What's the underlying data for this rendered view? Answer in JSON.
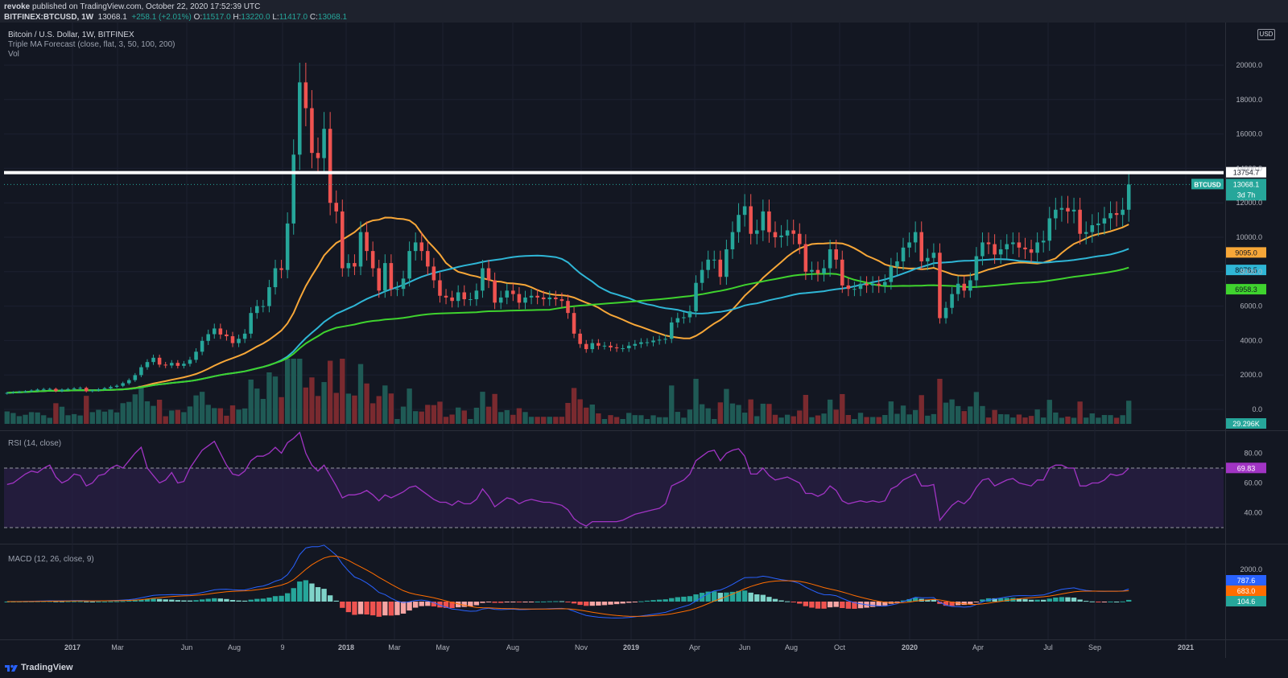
{
  "header": {
    "publisher": "revoke",
    "published_text": "published on TradingView.com, October 22, 2020 17:52:39 UTC",
    "symbol": "BITFINEX:BTCUSD, 1W",
    "last": "13068.1",
    "change": "+258.1 (+2.01%)",
    "open_label": "O:",
    "open": "11517.0",
    "high_label": "H:",
    "high": "13220.0",
    "low_label": "L:",
    "low": "11417.0",
    "close_label": "C:",
    "close": "13068.1"
  },
  "legends": {
    "main": "Bitcoin / U.S. Dollar, 1W, BITFINEX",
    "ma": "Triple MA Forecast (close, flat, 3, 50, 100, 200)",
    "vol": "Vol",
    "rsi": "RSI (14, close)",
    "macd": "MACD (12, 26, close, 9)"
  },
  "currency": "USD",
  "footer": {
    "brand": "TradingView"
  },
  "colors": {
    "bg": "#131722",
    "up": "#26a69a",
    "down": "#ef5350",
    "ma50": "#f7a738",
    "ma100": "#2fb6d6",
    "ma200": "#3fd32e",
    "rsi": "#a134c4",
    "rsi_band": "#2a1f45",
    "macd": "#2962ff",
    "signal": "#ff6d00",
    "hist_up": "#26a69a",
    "hist_down": "#ef5350"
  },
  "chart_data": [
    {
      "type": "candlestick",
      "title": "Bitcoin / U.S. Dollar, 1W, BITFINEX",
      "ylim": [
        -1000,
        21000
      ],
      "y_ticks": [
        "20000.0",
        "18000.0",
        "16000.0",
        "14000.0",
        "12000.0",
        "10000.0",
        "8000.0",
        "6000.0",
        "4000.0",
        "2000.0",
        "0.0"
      ],
      "x_ticks": [
        "2017",
        "Mar",
        "Jun",
        "Aug",
        "9",
        "2018",
        "Mar",
        "May",
        "Aug",
        "Nov",
        "2019",
        "Apr",
        "Jun",
        "Aug",
        "Oct",
        "2020",
        "Apr",
        "Jul",
        "Sep",
        "2021"
      ],
      "close_weekly": [
        960,
        1000,
        1020,
        1050,
        1100,
        1150,
        1180,
        1190,
        1060,
        1150,
        1180,
        1220,
        1250,
        1050,
        1100,
        1170,
        1230,
        1310,
        1370,
        1520,
        1700,
        1990,
        2450,
        2750,
        3000,
        2600,
        2550,
        2700,
        2530,
        2650,
        2880,
        3350,
        3980,
        4370,
        4700,
        4350,
        4250,
        3850,
        4100,
        4400,
        5600,
        6000,
        6000,
        7100,
        8200,
        8100,
        10800,
        14800,
        19000,
        17500,
        14900,
        14600,
        16300,
        12000,
        11500,
        8200,
        8500,
        8300,
        10300,
        9200,
        8200,
        6900,
        8500,
        7000,
        7000,
        7600,
        9200,
        9700,
        9200,
        8300,
        7500,
        6600,
        6500,
        6300,
        6800,
        6400,
        6400,
        6900,
        8200,
        7500,
        6200,
        6500,
        6900,
        6700,
        6200,
        6500,
        6600,
        6500,
        6400,
        6500,
        6400,
        6300,
        5600,
        4400,
        3800,
        3500,
        3850,
        3700,
        3700,
        3600,
        3550,
        3550,
        3700,
        3800,
        3900,
        3900,
        4000,
        4050,
        4100,
        5050,
        5300,
        5350,
        5700,
        7350,
        8100,
        8700,
        8700,
        7700,
        9300,
        10300,
        11300,
        11800,
        10200,
        10400,
        11500,
        10300,
        10000,
        10100,
        10400,
        10200,
        9600,
        8000,
        8100,
        7900,
        8200,
        9300,
        8700,
        7200,
        7000,
        7000,
        7300,
        7200,
        7300,
        7200,
        7400,
        8300,
        8600,
        9400,
        9700,
        10300,
        8600,
        8800,
        9100,
        5300,
        5900,
        6700,
        7300,
        6900,
        7500,
        8900,
        9700,
        9600,
        9000,
        9300,
        9600,
        9700,
        9400,
        9300,
        9100,
        9700,
        9800,
        11100,
        11600,
        11700,
        11500,
        11600,
        10200,
        10300,
        10700,
        10800,
        11100,
        11400,
        11300,
        11600,
        13068.1
      ],
      "ma_series": [
        {
          "name": "MA 50",
          "end_value": "9095.0"
        },
        {
          "name": "MA 100",
          "end_value": "8078.5"
        },
        {
          "name": "MA 200",
          "end_value": "6958.3"
        }
      ],
      "horizontal_line": {
        "value": 13754.7,
        "label": "13754.7"
      },
      "last_price": {
        "label": "BTCUSD",
        "value": "13068.1",
        "countdown": "3d 7h"
      },
      "volume": {
        "label": "Vol",
        "last": "29.296K"
      }
    },
    {
      "type": "line",
      "title": "RSI (14, close)",
      "y_ticks": [
        "80.00",
        "60.00",
        "40.00"
      ],
      "bands": [
        70,
        30
      ],
      "last": "69.83",
      "values": [
        59,
        60,
        63,
        66,
        68,
        67,
        70,
        72,
        64,
        60,
        62,
        66,
        65,
        58,
        60,
        65,
        66,
        70,
        72,
        70,
        75,
        80,
        84,
        70,
        65,
        60,
        62,
        67,
        60,
        61,
        70,
        76,
        82,
        85,
        88,
        80,
        72,
        66,
        65,
        68,
        75,
        78,
        78,
        80,
        84,
        80,
        87,
        90,
        94,
        80,
        72,
        68,
        72,
        65,
        58,
        50,
        52,
        52,
        53,
        55,
        52,
        48,
        52,
        50,
        52,
        54,
        57,
        58,
        55,
        52,
        49,
        47,
        47,
        45,
        48,
        46,
        46,
        49,
        56,
        51,
        44,
        47,
        50,
        49,
        46,
        48,
        49,
        48,
        47,
        47,
        46,
        45,
        42,
        36,
        33,
        31,
        34,
        34,
        34,
        34,
        34,
        35,
        37,
        39,
        40,
        41,
        42,
        43,
        46,
        58,
        60,
        62,
        66,
        75,
        78,
        81,
        82,
        75,
        80,
        82,
        83,
        78,
        66,
        66,
        70,
        65,
        62,
        63,
        64,
        62,
        60,
        53,
        53,
        51,
        53,
        58,
        55,
        48,
        46,
        47,
        48,
        47,
        48,
        47,
        48,
        56,
        58,
        62,
        64,
        66,
        58,
        58,
        59,
        35,
        40,
        45,
        48,
        46,
        50,
        57,
        62,
        63,
        58,
        60,
        62,
        63,
        60,
        59,
        58,
        62,
        62,
        70,
        72,
        72,
        70,
        70,
        58,
        58,
        60,
        60,
        62,
        66,
        65,
        66,
        69.83
      ]
    },
    {
      "type": "bar",
      "title": "MACD (12, 26, close, 9)",
      "y_ticks": [
        "2000.0"
      ],
      "last_values": {
        "macd": "787.6",
        "signal": "683.0",
        "histogram": "104.6"
      }
    }
  ]
}
